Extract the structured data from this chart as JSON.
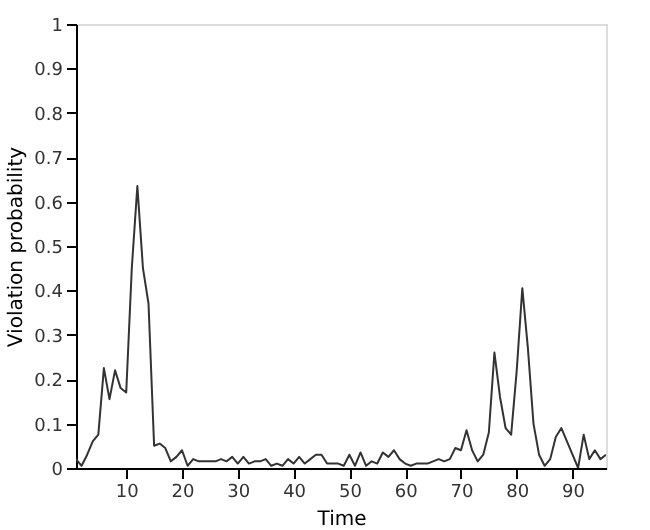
{
  "chart_data": {
    "type": "line",
    "xlabel": "Time",
    "ylabel": "Violation probability",
    "x": [
      1,
      2,
      3,
      4,
      5,
      6,
      7,
      8,
      9,
      10,
      11,
      12,
      13,
      14,
      15,
      16,
      17,
      18,
      19,
      20,
      21,
      22,
      23,
      24,
      25,
      26,
      27,
      28,
      29,
      30,
      31,
      32,
      33,
      34,
      35,
      36,
      37,
      38,
      39,
      40,
      41,
      42,
      43,
      44,
      45,
      46,
      47,
      48,
      49,
      50,
      51,
      52,
      53,
      54,
      55,
      56,
      57,
      58,
      59,
      60,
      61,
      62,
      63,
      64,
      65,
      66,
      67,
      68,
      69,
      70,
      71,
      72,
      73,
      74,
      75,
      76,
      77,
      78,
      79,
      80,
      81,
      82,
      83,
      84,
      85,
      86,
      87,
      88,
      89,
      90,
      91,
      92,
      93,
      94,
      95,
      96
    ],
    "series": [
      {
        "color": "#333333",
        "values": [
          0.02,
          0.005,
          0.03,
          0.06,
          0.075,
          0.225,
          0.155,
          0.22,
          0.18,
          0.17,
          0.45,
          0.635,
          0.45,
          0.37,
          0.05,
          0.055,
          0.045,
          0.015,
          0.025,
          0.04,
          0.005,
          0.02,
          0.015,
          0.015,
          0.015,
          0.015,
          0.02,
          0.015,
          0.025,
          0.01,
          0.025,
          0.01,
          0.015,
          0.015,
          0.02,
          0.005,
          0.01,
          0.005,
          0.02,
          0.01,
          0.025,
          0.01,
          0.02,
          0.03,
          0.03,
          0.01,
          0.01,
          0.01,
          0.005,
          0.03,
          0.005,
          0.035,
          0.005,
          0.015,
          0.01,
          0.035,
          0.025,
          0.04,
          0.02,
          0.01,
          0.005,
          0.01,
          0.01,
          0.01,
          0.015,
          0.02,
          0.015,
          0.02,
          0.045,
          0.04,
          0.085,
          0.04,
          0.015,
          0.03,
          0.08,
          0.26,
          0.16,
          0.09,
          0.075,
          0.22,
          0.405,
          0.27,
          0.1,
          0.03,
          0.005,
          0.02,
          0.07,
          0.09,
          0.06,
          0.03,
          0.0,
          0.075,
          0.02,
          0.04,
          0.02,
          0.03
        ]
      }
    ],
    "xlim": [
      1,
      96
    ],
    "xticks": [
      10,
      20,
      30,
      40,
      50,
      60,
      70,
      80,
      90
    ],
    "ylim": [
      0,
      1
    ],
    "yticks": [
      0,
      0.1,
      0.2,
      0.3,
      0.4,
      0.5,
      0.6,
      0.7,
      0.8,
      0.9,
      1
    ],
    "grid": false,
    "marker": "none",
    "line_style": "solid"
  }
}
